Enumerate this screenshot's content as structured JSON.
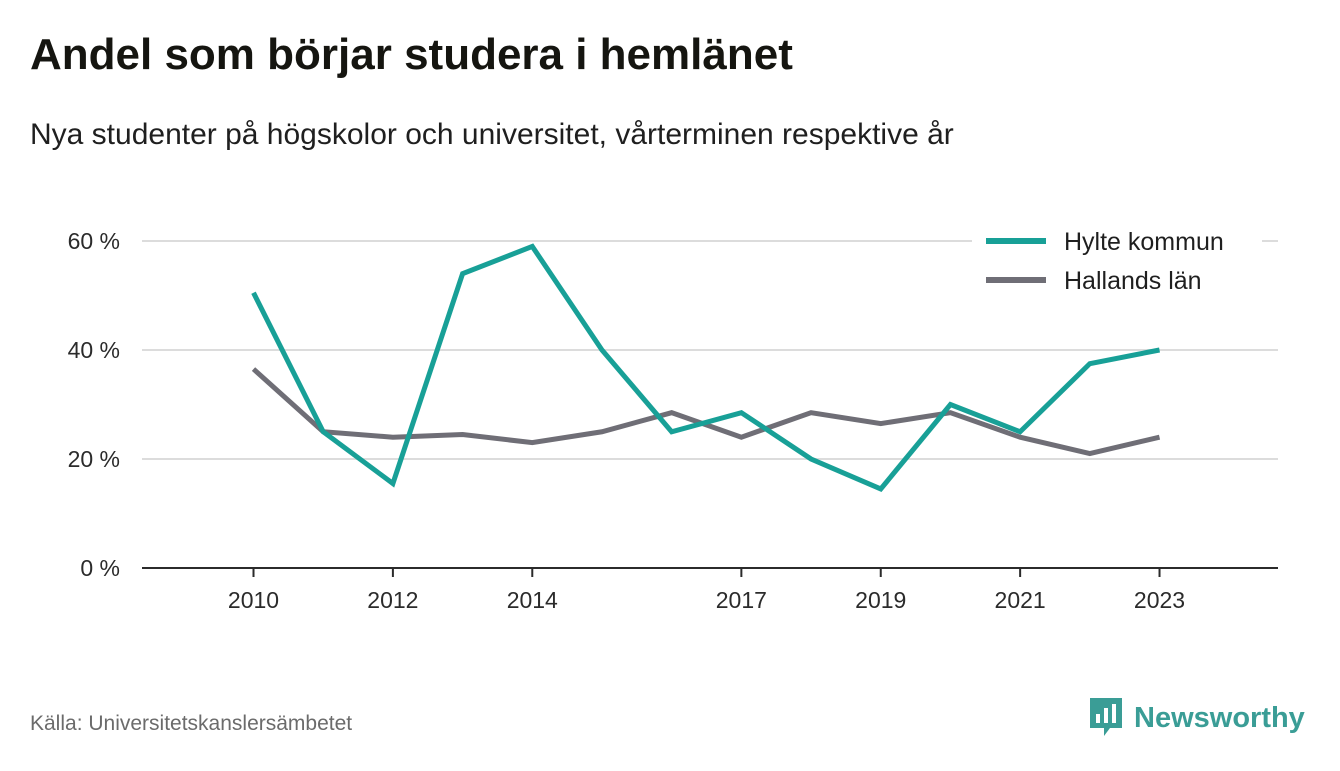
{
  "header": {
    "title": "Andel som börjar studera i hemlänet",
    "subtitle": "Nya studenter på högskolor och universitet, vårterminen respektive år"
  },
  "footer": {
    "source": "Källa: Universitetskanslersämbetet",
    "brand": "Newsworthy",
    "brand_color": "#3a9d96"
  },
  "chart_data": {
    "type": "line",
    "x": [
      2010,
      2011,
      2012,
      2013,
      2014,
      2015,
      2016,
      2017,
      2018,
      2019,
      2020,
      2021,
      2022,
      2023
    ],
    "x_tick_labels": [
      "2010",
      "2012",
      "2014",
      "2017",
      "2019",
      "2021",
      "2023"
    ],
    "x_tick_values": [
      2010,
      2012,
      2014,
      2017,
      2019,
      2021,
      2023
    ],
    "xlim": [
      2008.4,
      2024.7
    ],
    "ylim": [
      0,
      60
    ],
    "y_ticks": [
      0,
      20,
      40,
      60
    ],
    "y_tick_labels": [
      "0 %",
      "20 %",
      "40 %",
      "60 %"
    ],
    "grid": true,
    "legend_position": "top-right",
    "series": [
      {
        "name": "Hylte kommun",
        "color": "#18a097",
        "values": [
          50.5,
          25.0,
          15.5,
          54.0,
          59.0,
          40.0,
          25.0,
          28.5,
          20.0,
          14.5,
          30.0,
          25.0,
          37.5,
          40.0
        ]
      },
      {
        "name": "Hallands län",
        "color": "#6f6e76",
        "values": [
          36.5,
          25.0,
          24.0,
          24.5,
          23.0,
          25.0,
          28.5,
          24.0,
          28.5,
          26.5,
          28.5,
          24.0,
          21.0,
          24.0
        ]
      }
    ]
  }
}
